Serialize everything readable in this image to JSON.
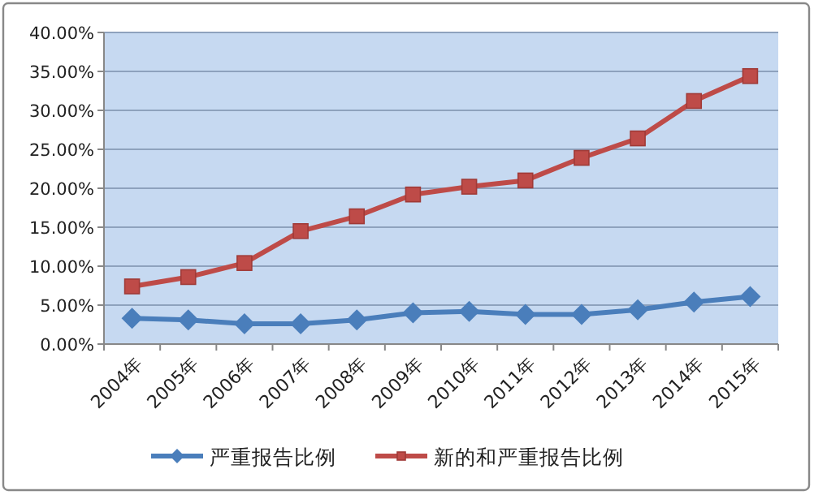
{
  "chart_data": {
    "type": "line",
    "categories": [
      "2004年",
      "2005年",
      "2006年",
      "2007年",
      "2008年",
      "2009年",
      "2010年",
      "2011年",
      "2012年",
      "2013年",
      "2014年",
      "2015年"
    ],
    "series": [
      {
        "name": "严重报告比例",
        "color": "#4a7ebb",
        "marker": "diamond",
        "values": [
          3.3,
          3.1,
          2.6,
          2.6,
          3.1,
          4.0,
          4.2,
          3.8,
          3.8,
          4.4,
          5.4,
          6.1
        ]
      },
      {
        "name": "新的和严重报告比例",
        "color": "#be4b48",
        "marker": "square",
        "values": [
          7.4,
          8.6,
          10.4,
          14.5,
          16.4,
          19.2,
          20.2,
          21.0,
          23.9,
          26.4,
          31.2,
          34.4
        ]
      }
    ],
    "ylim": [
      0,
      40
    ],
    "yticks": [
      {
        "value": 0,
        "label": "0.00%"
      },
      {
        "value": 5,
        "label": "5.00%"
      },
      {
        "value": 10,
        "label": "10.00%"
      },
      {
        "value": 15,
        "label": "15.00%"
      },
      {
        "value": 20,
        "label": "20.00%"
      },
      {
        "value": 25,
        "label": "25.00%"
      },
      {
        "value": 30,
        "label": "30.00%"
      },
      {
        "value": 35,
        "label": "35.00%"
      },
      {
        "value": 40,
        "label": "40.00%"
      }
    ],
    "grid": "y",
    "legend": "bottom",
    "line_style": "solid"
  }
}
